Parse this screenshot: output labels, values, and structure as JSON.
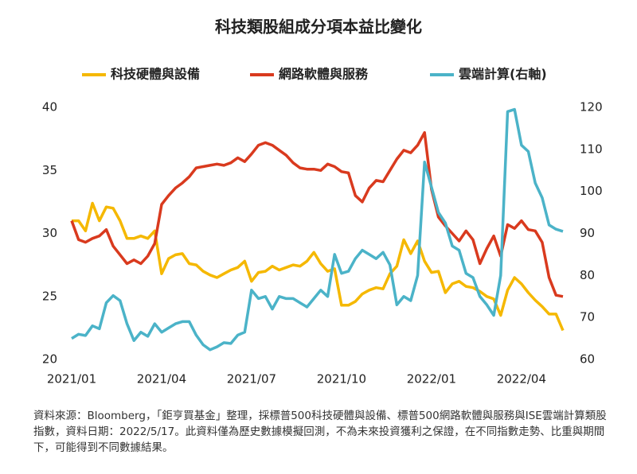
{
  "chart_data": {
    "type": "line",
    "title": "科技類股組成分項本益比變化",
    "categories": [
      "2021/01",
      null,
      null,
      null,
      null,
      null,
      null,
      null,
      null,
      null,
      null,
      null,
      null,
      "2021/04",
      null,
      null,
      null,
      null,
      null,
      null,
      null,
      null,
      null,
      null,
      null,
      null,
      "2021/07",
      null,
      null,
      null,
      null,
      null,
      null,
      null,
      null,
      null,
      null,
      null,
      null,
      "2021/10",
      null,
      null,
      null,
      null,
      null,
      null,
      null,
      null,
      null,
      null,
      null,
      null,
      "2022/01",
      null,
      null,
      null,
      null,
      null,
      null,
      null,
      null,
      null,
      null,
      null,
      null,
      "2022/04",
      null,
      null,
      null,
      null,
      null,
      null
    ],
    "series": [
      {
        "name": "科技硬體與設備",
        "color": "#f5b800",
        "values": [
          31,
          31,
          30.2,
          32.4,
          31,
          32.1,
          32,
          31,
          29.6,
          29.6,
          29.8,
          29.6,
          30.2,
          26.8,
          28,
          28.3,
          28.4,
          27.6,
          27.5,
          27,
          26.7,
          26.5,
          26.8,
          27.1,
          27.3,
          27.8,
          26.2,
          26.9,
          27,
          27.4,
          27.1,
          27.3,
          27.5,
          27.4,
          27.8,
          28.5,
          27.6,
          27,
          27.2,
          24.3,
          24.3,
          24.6,
          25.2,
          25.5,
          25.7,
          25.6,
          26.8,
          27.4,
          29.5,
          28.4,
          29.4,
          27.8,
          26.9,
          27,
          25.3,
          26,
          26.2,
          25.8,
          25.7,
          25.4,
          25,
          24.8,
          23.5,
          25.5,
          26.5,
          26,
          25.3,
          24.7,
          24.2,
          23.6,
          23.6,
          22.3
        ]
      },
      {
        "name": "網路軟體與服務",
        "color": "#d93a1e",
        "values": [
          31,
          29.5,
          29.3,
          29.6,
          29.8,
          30.3,
          29,
          28.3,
          27.6,
          27.9,
          27.6,
          28.2,
          29.2,
          32.3,
          33,
          33.6,
          34,
          34.5,
          35.2,
          35.3,
          35.4,
          35.5,
          35.4,
          35.6,
          36,
          35.7,
          36.3,
          37,
          37.2,
          37,
          36.6,
          36.2,
          35.6,
          35.2,
          35.1,
          35.1,
          35,
          35.5,
          35.3,
          34.9,
          34.8,
          33,
          32.5,
          33.6,
          34.2,
          34.1,
          35,
          35.9,
          36.6,
          36.4,
          37,
          38,
          33.5,
          31.3,
          30.6,
          30,
          29.4,
          30.2,
          29.5,
          27.6,
          28.8,
          29.8,
          28.2,
          30.7,
          30.4,
          31,
          30.3,
          30.2,
          29.3,
          26.5,
          25.1,
          25
        ]
      },
      {
        "name": "雲端計算(右軸)",
        "color": "#4bb3c8",
        "axis": "y2",
        "values": [
          65,
          66,
          65.7,
          68,
          67.3,
          73.5,
          75.2,
          74,
          68.5,
          64.5,
          66.5,
          65.5,
          68.5,
          66.5,
          67.5,
          68.5,
          69,
          69,
          65.8,
          63.5,
          62.3,
          63,
          64,
          63.8,
          65.8,
          66.5,
          76.5,
          74.5,
          75,
          72,
          75,
          74.5,
          74.5,
          73.5,
          72.5,
          74.5,
          76.5,
          75,
          85,
          80.5,
          81,
          84,
          86,
          85,
          84,
          85.5,
          82.5,
          73,
          75,
          74,
          80,
          107,
          101,
          95,
          92.5,
          87,
          86,
          80.5,
          79.5,
          75,
          73,
          70.5,
          80,
          119,
          119.5,
          111,
          109.5,
          102,
          98.5,
          92,
          91,
          90.5
        ]
      }
    ],
    "ylim": [
      20,
      40
    ],
    "yticks": [
      20,
      25,
      30,
      35,
      40
    ],
    "y2lim": [
      60,
      120
    ],
    "y2ticks": [
      60,
      70,
      80,
      90,
      100,
      110,
      120
    ],
    "legend": "top",
    "note": "資料來源：Bloomberg，「鉅亨買基金」整理，採標普500科技硬體與設備、標普500網路軟體與服務與ISE雲端計算類股指數，資料日期：2022/5/17。此資料僅為歷史數據模擬回測，不為未來投資獲利之保證，在不同指數走勢、比重與期間下，可能得到不同數據結果。"
  }
}
